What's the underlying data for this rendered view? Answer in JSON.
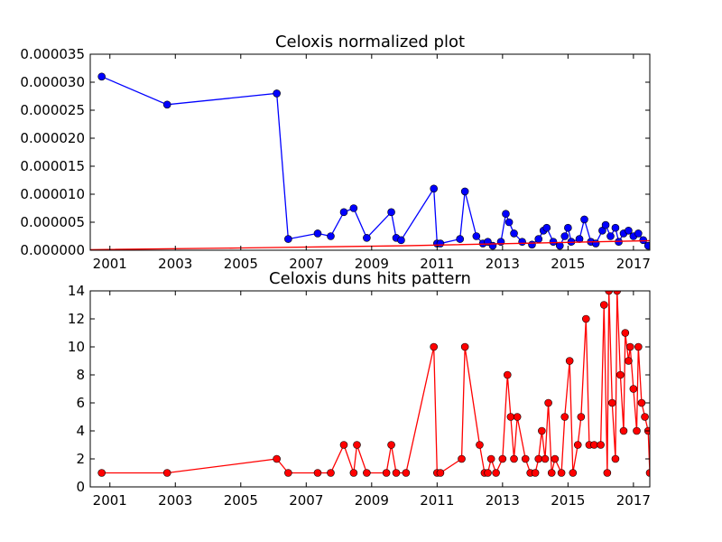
{
  "chart_data": [
    {
      "type": "line",
      "title": "Celoxis normalized plot",
      "xlabel": "",
      "ylabel": "",
      "xlim": [
        2000.4,
        2017.5
      ],
      "ylim": [
        0,
        3.5e-05
      ],
      "grid": false,
      "legend": "none",
      "x_ticks": [
        2001,
        2003,
        2005,
        2007,
        2009,
        2011,
        2013,
        2015,
        2017
      ],
      "x_tick_labels": [
        "2001",
        "2003",
        "2005",
        "2007",
        "2009",
        "2011",
        "2013",
        "2015",
        "2017"
      ],
      "y_ticks": [
        0,
        5e-06,
        1e-05,
        1.5e-05,
        2e-05,
        2.5e-05,
        3e-05,
        3.5e-05
      ],
      "y_tick_labels": [
        "0.000000",
        "0.000005",
        "0.000010",
        "0.000015",
        "0.000020",
        "0.000025",
        "0.000030",
        "0.000035"
      ],
      "series": [
        {
          "color": "#0000ff",
          "marker": "circle",
          "points": [
            [
              2000.75,
              3.1e-05
            ],
            [
              2002.75,
              2.6e-05
            ],
            [
              2006.1,
              2.8e-05
            ],
            [
              2006.45,
              2e-06
            ],
            [
              2007.35,
              3e-06
            ],
            [
              2007.75,
              2.5e-06
            ],
            [
              2008.15,
              6.8e-06
            ],
            [
              2008.45,
              7.5e-06
            ],
            [
              2008.85,
              2.2e-06
            ],
            [
              2009.6,
              6.8e-06
            ],
            [
              2009.75,
              2.2e-06
            ],
            [
              2009.9,
              1.8e-06
            ],
            [
              2010.9,
              1.1e-05
            ],
            [
              2011.0,
              1.2e-06
            ],
            [
              2011.1,
              1.2e-06
            ],
            [
              2011.7,
              2e-06
            ],
            [
              2011.85,
              1.05e-05
            ],
            [
              2012.2,
              2.5e-06
            ],
            [
              2012.4,
              1.2e-06
            ],
            [
              2012.55,
              1.5e-06
            ],
            [
              2012.7,
              8e-07
            ],
            [
              2012.95,
              1.5e-06
            ],
            [
              2013.1,
              6.5e-06
            ],
            [
              2013.2,
              5e-06
            ],
            [
              2013.35,
              3e-06
            ],
            [
              2013.6,
              1.5e-06
            ],
            [
              2013.9,
              1e-06
            ],
            [
              2014.1,
              2e-06
            ],
            [
              2014.25,
              3.5e-06
            ],
            [
              2014.35,
              4e-06
            ],
            [
              2014.55,
              1.5e-06
            ],
            [
              2014.75,
              8e-07
            ],
            [
              2014.9,
              2.5e-06
            ],
            [
              2015.0,
              4e-06
            ],
            [
              2015.1,
              1.5e-06
            ],
            [
              2015.35,
              2e-06
            ],
            [
              2015.5,
              5.5e-06
            ],
            [
              2015.7,
              1.5e-06
            ],
            [
              2015.85,
              1.2e-06
            ],
            [
              2016.05,
              3.5e-06
            ],
            [
              2016.15,
              4.5e-06
            ],
            [
              2016.3,
              2.5e-06
            ],
            [
              2016.45,
              4e-06
            ],
            [
              2016.55,
              1.5e-06
            ],
            [
              2016.7,
              3e-06
            ],
            [
              2016.85,
              3.5e-06
            ],
            [
              2017.0,
              2.5e-06
            ],
            [
              2017.15,
              3e-06
            ],
            [
              2017.3,
              1.8e-06
            ],
            [
              2017.45,
              8e-07
            ]
          ]
        },
        {
          "color": "#ff0000",
          "marker": "none",
          "points": [
            [
              2000.4,
              1e-07
            ],
            [
              2005.0,
              4e-07
            ],
            [
              2010.0,
              8e-07
            ],
            [
              2015.0,
              1.4e-06
            ],
            [
              2017.5,
              1.7e-06
            ]
          ]
        }
      ]
    },
    {
      "type": "line",
      "title": "Celoxis duns hits pattern",
      "xlabel": "",
      "ylabel": "",
      "xlim": [
        2000.4,
        2017.5
      ],
      "ylim": [
        0,
        14
      ],
      "grid": false,
      "legend": "none",
      "x_ticks": [
        2001,
        2003,
        2005,
        2007,
        2009,
        2011,
        2013,
        2015,
        2017
      ],
      "x_tick_labels": [
        "2001",
        "2003",
        "2005",
        "2007",
        "2009",
        "2011",
        "2013",
        "2015",
        "2017"
      ],
      "y_ticks": [
        0,
        2,
        4,
        6,
        8,
        10,
        12,
        14
      ],
      "y_tick_labels": [
        "0",
        "2",
        "4",
        "6",
        "8",
        "10",
        "12",
        "14"
      ],
      "series": [
        {
          "color": "#ff0000",
          "marker": "circle",
          "points": [
            [
              2000.75,
              1
            ],
            [
              2002.75,
              1
            ],
            [
              2006.1,
              2
            ],
            [
              2006.45,
              1
            ],
            [
              2007.35,
              1
            ],
            [
              2007.75,
              1
            ],
            [
              2008.15,
              3
            ],
            [
              2008.45,
              1
            ],
            [
              2008.55,
              3
            ],
            [
              2008.85,
              1
            ],
            [
              2009.45,
              1
            ],
            [
              2009.6,
              3
            ],
            [
              2009.75,
              1
            ],
            [
              2010.05,
              1
            ],
            [
              2010.9,
              10
            ],
            [
              2011.0,
              1
            ],
            [
              2011.1,
              1
            ],
            [
              2011.75,
              2
            ],
            [
              2011.85,
              10
            ],
            [
              2012.3,
              3
            ],
            [
              2012.45,
              1
            ],
            [
              2012.55,
              1
            ],
            [
              2012.65,
              2
            ],
            [
              2012.8,
              1
            ],
            [
              2013.0,
              2
            ],
            [
              2013.15,
              8
            ],
            [
              2013.25,
              5
            ],
            [
              2013.35,
              2
            ],
            [
              2013.45,
              5
            ],
            [
              2013.7,
              2
            ],
            [
              2013.85,
              1
            ],
            [
              2014.0,
              1
            ],
            [
              2014.1,
              2
            ],
            [
              2014.2,
              4
            ],
            [
              2014.3,
              2
            ],
            [
              2014.4,
              6
            ],
            [
              2014.5,
              1
            ],
            [
              2014.6,
              2
            ],
            [
              2014.8,
              1
            ],
            [
              2014.9,
              5
            ],
            [
              2015.05,
              9
            ],
            [
              2015.15,
              1
            ],
            [
              2015.3,
              3
            ],
            [
              2015.4,
              5
            ],
            [
              2015.55,
              12
            ],
            [
              2015.65,
              3
            ],
            [
              2015.8,
              3
            ],
            [
              2016.0,
              3
            ],
            [
              2016.1,
              13
            ],
            [
              2016.2,
              1
            ],
            [
              2016.25,
              14
            ],
            [
              2016.35,
              6
            ],
            [
              2016.45,
              2
            ],
            [
              2016.5,
              14
            ],
            [
              2016.6,
              8
            ],
            [
              2016.7,
              4
            ],
            [
              2016.75,
              11
            ],
            [
              2016.85,
              9
            ],
            [
              2016.9,
              10
            ],
            [
              2017.0,
              7
            ],
            [
              2017.1,
              4
            ],
            [
              2017.15,
              10
            ],
            [
              2017.25,
              6
            ],
            [
              2017.35,
              5
            ],
            [
              2017.45,
              4
            ],
            [
              2017.5,
              1
            ]
          ]
        }
      ]
    }
  ]
}
